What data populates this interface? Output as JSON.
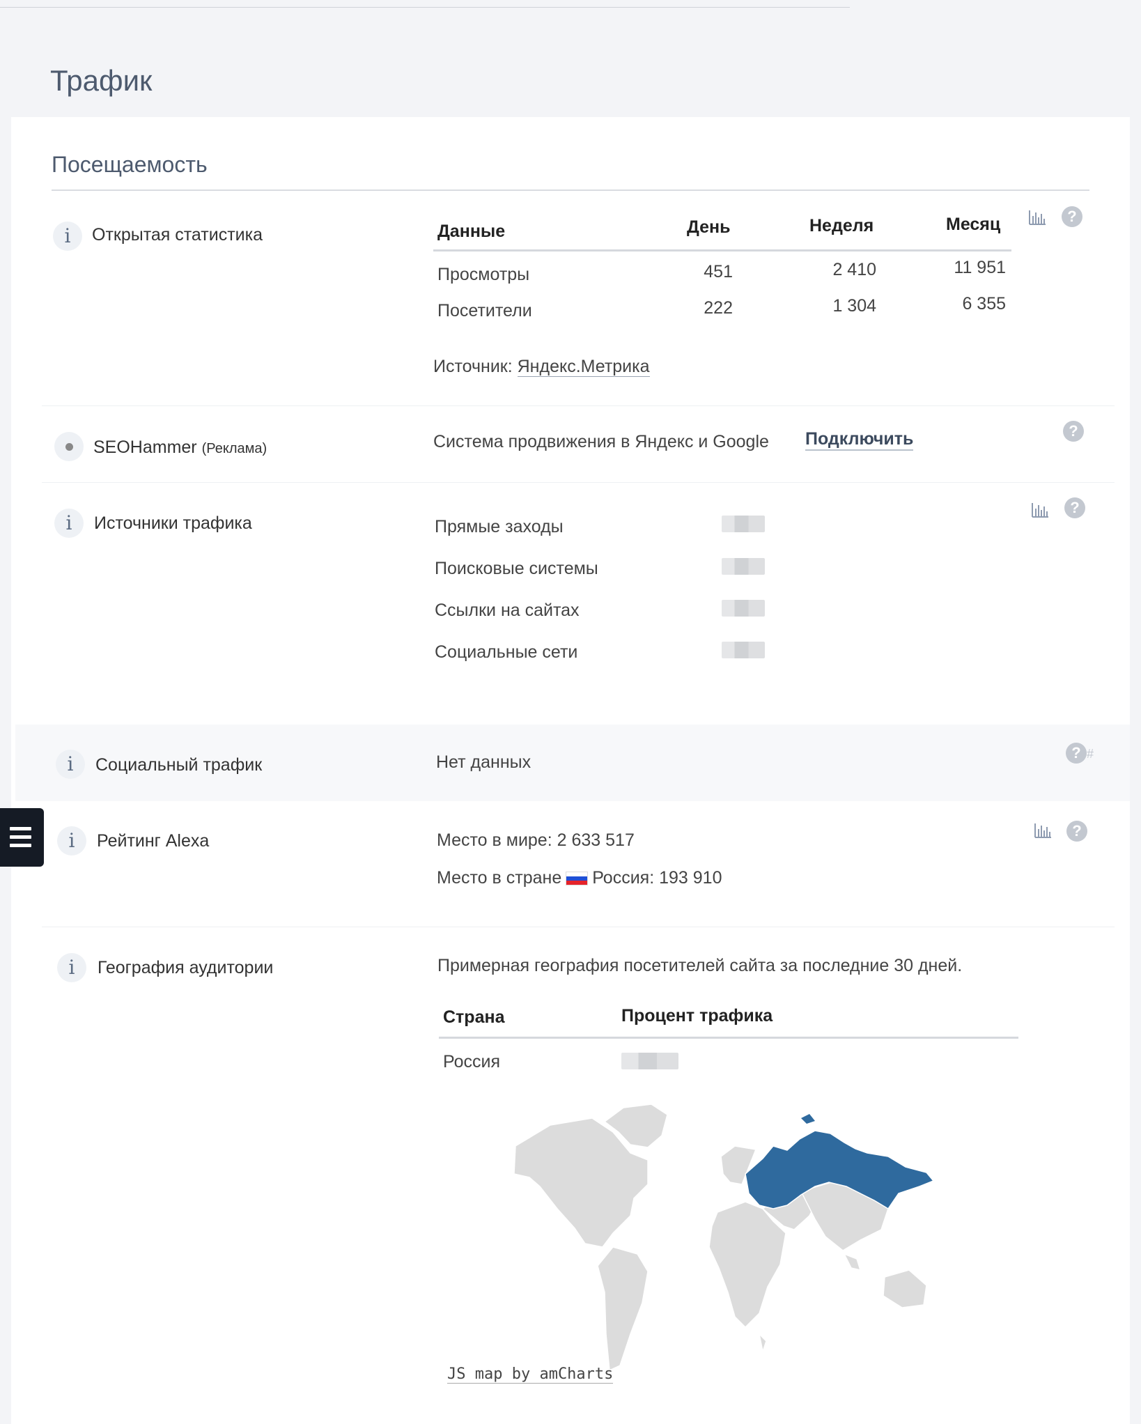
{
  "page": {
    "title": "Трафик"
  },
  "section": {
    "title": "Посещаемость"
  },
  "open_stats": {
    "label": "Открытая статистика",
    "headers": {
      "data": "Данные",
      "day": "День",
      "week": "Неделя",
      "month": "Месяц"
    },
    "rows": [
      {
        "label": "Просмотры",
        "day": "451",
        "week": "2 410",
        "month": "11 951"
      },
      {
        "label": "Посетители",
        "day": "222",
        "week": "1 304",
        "month": "6 355"
      }
    ],
    "source_prefix": "Источник:",
    "source_link": "Яндекс.Метрика"
  },
  "seohammer": {
    "label": "SEOHammer",
    "ad": "(Реклама)",
    "description": "Система продвижения в Яндекс и Google",
    "connect_label": "Подключить"
  },
  "traffic_sources": {
    "label": "Источники трафика",
    "items": [
      "Прямые заходы",
      "Поисковые системы",
      "Ссылки на сайтах",
      "Социальные сети"
    ]
  },
  "social_traffic": {
    "label": "Социальный трафик",
    "value": "Нет данных",
    "hash": "#"
  },
  "alexa": {
    "label": "Рейтинг Alexa",
    "world_prefix": "Место в мире:",
    "world_value": "2 633 517",
    "country_prefix": "Место в стране",
    "country_value": "Россия: 193 910"
  },
  "geography": {
    "label": "География аудитории",
    "description": "Примерная география посетителей сайта за последние 30 дней.",
    "headers": {
      "country": "Страна",
      "percent": "Процент трафика"
    },
    "rows": [
      {
        "country": "Россия"
      }
    ],
    "map_credit": "JS map by amCharts",
    "highlight_color": "#2f6a9e"
  },
  "icons": {
    "info": "info-icon",
    "help": "question-icon",
    "chart": "bar-chart-icon",
    "menu": "hamburger-menu-icon"
  }
}
